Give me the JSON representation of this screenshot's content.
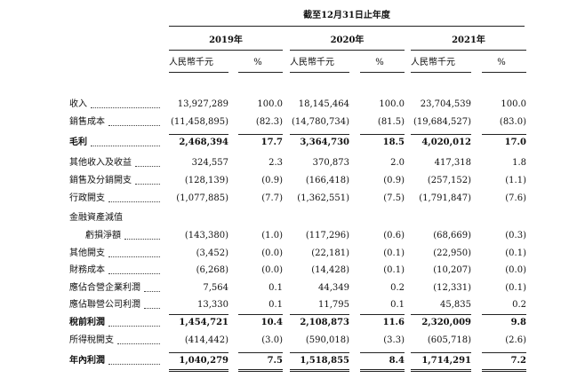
{
  "header": {
    "period": "截至12月31日止年度",
    "years": [
      {
        "year": "2019年",
        "amount_unit": "人民幣千元",
        "pct_unit": "%"
      },
      {
        "year": "2020年",
        "amount_unit": "人民幣千元",
        "pct_unit": "%"
      },
      {
        "year": "2021年",
        "amount_unit": "人民幣千元",
        "pct_unit": "%"
      }
    ]
  },
  "rows": [
    {
      "label": "收入",
      "values": [
        "13,927,289",
        "100.0",
        "18,145,464",
        "100.0",
        "23,704,539",
        "100.0"
      ]
    },
    {
      "label": "銷售成本",
      "values": [
        "(11,458,895)",
        "(82.3)",
        "(14,780,734)",
        "(81.5)",
        "(19,684,527)",
        "(83.0)"
      ]
    },
    {
      "label": "毛利",
      "bold": true,
      "values": [
        "2,468,394",
        "17.7",
        "3,364,730",
        "18.5",
        "4,020,012",
        "17.0"
      ]
    },
    {
      "label": "其他收入及收益",
      "values": [
        "324,557",
        "2.3",
        "370,873",
        "2.0",
        "417,318",
        "1.8"
      ]
    },
    {
      "label": "銷售及分銷開支",
      "values": [
        "(128,139)",
        "(0.9)",
        "(166,418)",
        "(0.9)",
        "(257,152)",
        "(1.1)"
      ]
    },
    {
      "label": "行政開支",
      "values": [
        "(1,077,885)",
        "(7.7)",
        "(1,362,551)",
        "(7.5)",
        "(1,791,847)",
        "(7.6)"
      ]
    },
    {
      "label": "金融資產減值"
    },
    {
      "label": "虧損淨額",
      "indent": true,
      "values": [
        "(143,380)",
        "(1.0)",
        "(117,296)",
        "(0.6)",
        "(68,669)",
        "(0.3)"
      ]
    },
    {
      "label": "其他開支",
      "values": [
        "(3,452)",
        "(0.0)",
        "(22,181)",
        "(0.1)",
        "(22,950)",
        "(0.1)"
      ]
    },
    {
      "label": "財務成本",
      "values": [
        "(6,268)",
        "(0.0)",
        "(14,428)",
        "(0.1)",
        "(10,207)",
        "(0.0)"
      ]
    },
    {
      "label": "應佔合營企業利潤",
      "values": [
        "7,564",
        "0.1",
        "44,349",
        "0.2",
        "(12,331)",
        "(0.1)"
      ]
    },
    {
      "label": "應佔聯營公司利潤",
      "values": [
        "13,330",
        "0.1",
        "11,795",
        "0.1",
        "45,835",
        "0.2"
      ]
    },
    {
      "label": "稅前利潤",
      "bold": true,
      "values": [
        "1,454,721",
        "10.4",
        "2,108,873",
        "11.6",
        "2,320,009",
        "9.8"
      ]
    },
    {
      "label": "所得稅開支",
      "values": [
        "(414,442)",
        "(3.0)",
        "(590,018)",
        "(3.3)",
        "(605,718)",
        "(2.6)"
      ]
    },
    {
      "label": "年內利潤",
      "bold": true,
      "values": [
        "1,040,279",
        "7.5",
        "1,518,855",
        "8.4",
        "1,714,291",
        "7.2"
      ]
    }
  ]
}
